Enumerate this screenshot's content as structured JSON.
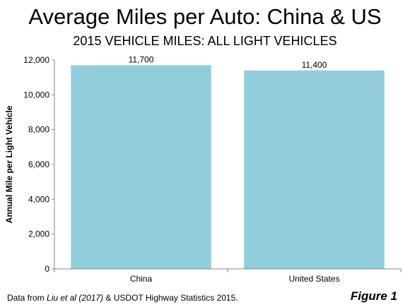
{
  "chart_data": {
    "type": "bar",
    "title": "Average Miles per Auto: China & US",
    "subtitle": "2015 VEHICLE MILES: ALL LIGHT VEHICLES",
    "categories": [
      "China",
      "United States"
    ],
    "values": [
      11700,
      11400
    ],
    "data_labels": [
      "11,700",
      "11,400"
    ],
    "xlabel": "",
    "ylabel": "Annual Mile per Light Vehicle",
    "ylim": [
      0,
      12000
    ],
    "yticks": [
      0,
      2000,
      4000,
      6000,
      8000,
      10000,
      12000
    ],
    "ytick_labels": [
      "0",
      "2,000",
      "4,000",
      "6,000",
      "8,000",
      "10,000",
      "12,000"
    ],
    "grid": false,
    "bar_color": "#92CDDC"
  },
  "footer": {
    "source_prefix": "Data from ",
    "source_citation": "Liu et al (2017)",
    "source_suffix": " & USDOT Highway Statistics 2015.",
    "figure_label": "Figure 1"
  }
}
